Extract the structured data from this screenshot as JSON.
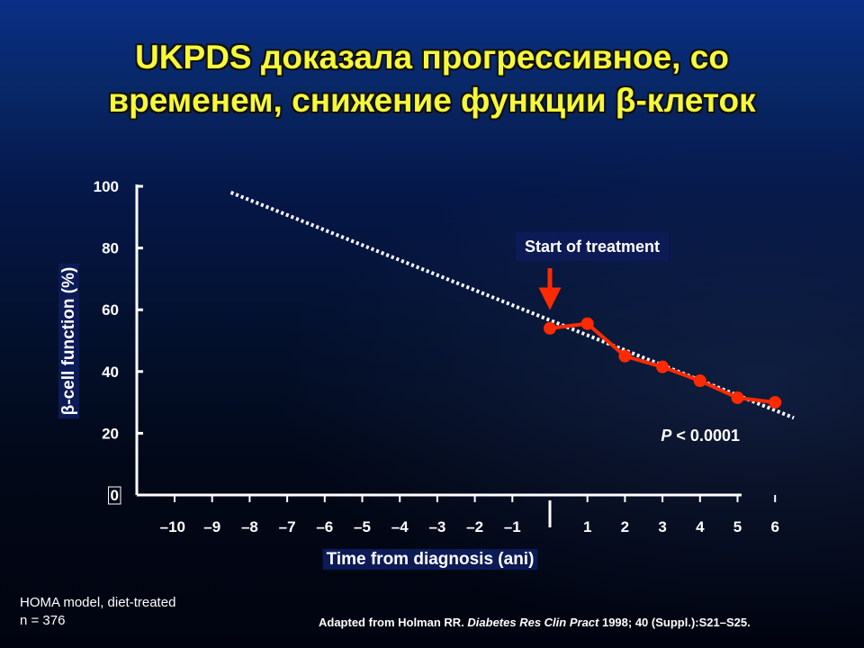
{
  "slide": {
    "title_line1": "UKPDS доказала прогрессивное, со",
    "title_line2": "временем, снижение функции β-клеток",
    "footnote_line1": "HOMA model, diet-treated",
    "footnote_line2": "n = 376",
    "citation_prefix": "Adapted from Holman RR. ",
    "citation_journal": "Diabetes Res Clin Pract",
    "citation_suffix": " 1998; 40 (Suppl.):S21–S25."
  },
  "chart_data": {
    "type": "line",
    "title": "",
    "xlabel": "Time from diagnosis (ani)",
    "ylabel": "β-cell function (%)",
    "xlim": [
      -10,
      6
    ],
    "ylim": [
      0,
      100
    ],
    "y_ticks": [
      0,
      20,
      40,
      60,
      80,
      100
    ],
    "x_tick_values": [
      -10,
      -9,
      -8,
      -7,
      -6,
      -5,
      -4,
      -3,
      -2,
      -1,
      1,
      2,
      3,
      4,
      5,
      6
    ],
    "x_tick_labels": [
      "–10",
      "–9",
      "–8",
      "–7",
      "–6",
      "–5",
      "–4",
      "–3",
      "–2",
      "–1",
      "1",
      "2",
      "3",
      "4",
      "5",
      "6"
    ],
    "y_tick_labels": [
      "0",
      "20",
      "40",
      "60",
      "80",
      "100"
    ],
    "series": [
      {
        "style": "solid-markers",
        "color": "#ff2a00",
        "x": [
          0,
          1,
          2,
          3,
          4,
          5,
          6
        ],
        "y": [
          54,
          55.5,
          45,
          41.5,
          37,
          31.5,
          30
        ]
      },
      {
        "style": "dotted-trend",
        "color": "#ffffff",
        "x": [
          -8.5,
          6.5
        ],
        "y": [
          98,
          25
        ]
      }
    ],
    "annotations": {
      "treatment_label": "Start of treatment",
      "treatment_x": 0,
      "p_value_label": "P",
      "p_value_text": " < 0.0001",
      "arrow_color": "#ff2a00",
      "label_box_color": "#0c1a56"
    }
  }
}
